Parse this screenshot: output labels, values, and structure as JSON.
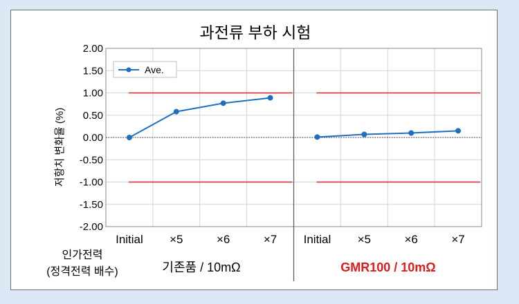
{
  "chart_data": {
    "type": "line",
    "title": "과전류 부하 시험",
    "ylabel": "저항치 변화율 (%)",
    "ylim": [
      -2.0,
      2.0
    ],
    "y_ticks": [
      "2.00",
      "1.50",
      "1.00",
      "0.50",
      "0.00",
      "-0.50",
      "-1.00",
      "-1.50",
      "-2.00"
    ],
    "categories": [
      "Initial",
      "×5",
      "×6",
      "×7",
      "Initial",
      "×5",
      "×6",
      "×7"
    ],
    "groups": [
      {
        "label": "기존품 / 10mΩ",
        "color": "#000000"
      },
      {
        "label": "GMR100 / 10mΩ",
        "color": "#e01b1b"
      }
    ],
    "series": [
      {
        "name": "Ave.",
        "color": "#1f6fbf",
        "segments": [
          {
            "values": [
              0.0,
              0.58,
              0.77,
              0.89
            ]
          },
          {
            "values": [
              0.01,
              0.07,
              0.1,
              0.15
            ]
          }
        ]
      }
    ],
    "limit_lines": [
      {
        "value": 1.0,
        "color": "#e02020"
      },
      {
        "value": -1.0,
        "color": "#e02020"
      }
    ],
    "reference_line": {
      "value": 0.0,
      "style": "dotted"
    },
    "grid": true,
    "legend_position": "top-left",
    "footer_labels": [
      "인가전력",
      "(정격전력 배수)"
    ]
  }
}
